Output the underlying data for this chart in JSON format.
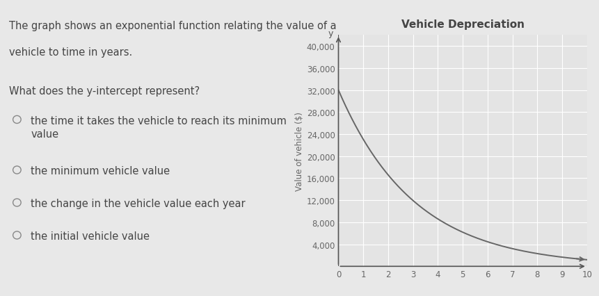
{
  "title": "Vehicle Depreciation",
  "ylabel_axis": "Value of vehicle ($)",
  "background_color": "#e8e8e8",
  "plot_bg_color": "#e4e4e4",
  "grid_color": "#ffffff",
  "curve_color": "#666666",
  "y_intercept": 32000,
  "decay_rate": 0.72,
  "x_min": 0,
  "x_max": 10,
  "y_min": 0,
  "y_max": 42000,
  "yticks": [
    4000,
    8000,
    12000,
    16000,
    20000,
    24000,
    28000,
    32000,
    36000,
    40000
  ],
  "xticks": [
    0,
    1,
    2,
    3,
    4,
    5,
    6,
    7,
    8,
    9,
    10
  ],
  "question_text1": "The graph shows an exponential function relating the value of a",
  "question_text2": "vehicle to time in years.",
  "question_text3": "What does the y-intercept represent?",
  "options": [
    "the time it takes the vehicle to reach its minimum\nvalue",
    "the minimum vehicle value",
    "the change in the vehicle value each year",
    "the initial vehicle value"
  ],
  "option_font_size": 10.5,
  "question_font_size": 10.5,
  "title_font_size": 11,
  "tick_font_size": 8.5,
  "ylabel_font_size": 8.5,
  "text_color": "#444444",
  "tick_color": "#666666"
}
